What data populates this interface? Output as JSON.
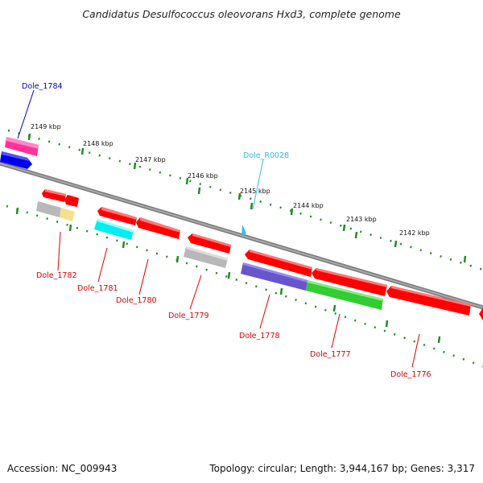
{
  "title": "Candidatus Desulfococcus oleovorans Hxd3, complete genome",
  "footer": {
    "accession": "Accession: NC_009943",
    "stats": "Topology: circular; Length: 3,944,167 bp; Genes: 3,317"
  },
  "ticks": [
    "2149 kbp",
    "2148 kbp",
    "2147 kbp",
    "2146 kbp",
    "2145 kbp",
    "2144 kbp",
    "2143 kbp",
    "2142 kbp"
  ],
  "gene_labels": {
    "dole_1784": "Dole_1784",
    "dole_r0028": "Dole_R0028",
    "dole_1782": "Dole_1782",
    "dole_1781": "Dole_1781",
    "dole_1780": "Dole_1780",
    "dole_1779": "Dole_1779",
    "dole_1778": "Dole_1778",
    "dole_1777": "Dole_1777",
    "dole_1776": "Dole_1776"
  },
  "colors": {
    "forward_label": "#0000cc",
    "rna_label": "#33bbee",
    "reverse_label": "#dd0000",
    "backbone": "#808080",
    "tick_dots": "#228b22",
    "gene_red": "#ff0000",
    "gene_magenta": "#ff3399",
    "gene_blue": "#0000ee",
    "gene_cyan": "#00eeee",
    "gene_grey": "#b8b8b8",
    "gene_yellow": "#f5e08c",
    "gene_purple": "#6655cc",
    "gene_green": "#33cc33"
  }
}
